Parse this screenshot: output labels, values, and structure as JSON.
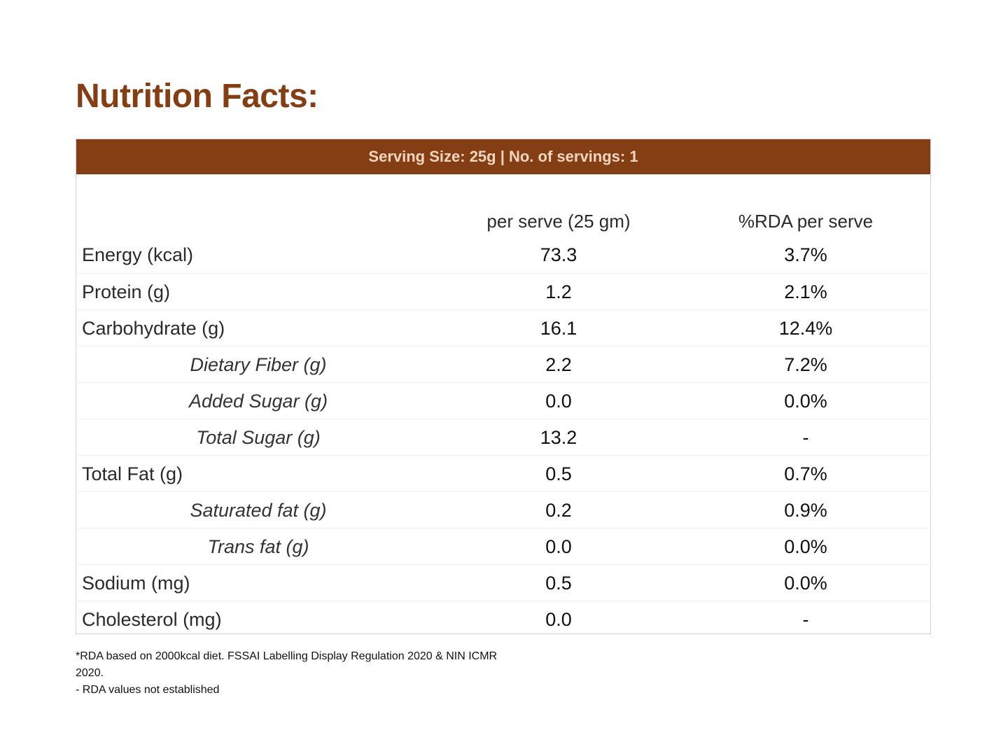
{
  "title": "Nutrition Facts:",
  "serving_banner": "Serving Size: 25g | No. of servings: 1",
  "columns": {
    "per_serve": "per serve (25 gm)",
    "rda": "%RDA per serve"
  },
  "rows": [
    {
      "name": "Energy (kcal)",
      "value": "73.3",
      "rda": "3.7%"
    },
    {
      "name": "Protein (g)",
      "value": "1.2",
      "rda": "2.1%"
    },
    {
      "name": "Carbohydrate (g)",
      "value": "16.1",
      "rda": "12.4%"
    },
    {
      "name": "Dietary Fiber (g)",
      "value": "2.2",
      "rda": "7.2%"
    },
    {
      "name": "Added Sugar (g)",
      "value": "0.0",
      "rda": "0.0%"
    },
    {
      "name": "Total Sugar (g)",
      "value": "13.2",
      "rda": "-"
    },
    {
      "name": "Total Fat (g)",
      "value": "0.5",
      "rda": "0.7%"
    },
    {
      "name": "Saturated fat (g)",
      "value": "0.2",
      "rda": "0.9%"
    },
    {
      "name": "Trans fat (g)",
      "value": "0.0",
      "rda": "0.0%"
    },
    {
      "name": "Sodium (mg)",
      "value": "0.5",
      "rda": "0.0%"
    },
    {
      "name": "Cholesterol (mg)",
      "value": "0.0",
      "rda": "-"
    }
  ],
  "footnotes": {
    "rda_basis": "*RDA based on 2000kcal diet. FSSAI Labelling Display Regulation 2020 & NIN ICMR 2020.",
    "not_established": "- RDA values not established"
  },
  "colors": {
    "brand": "#853e14",
    "banner_text": "#f6d6bf"
  }
}
